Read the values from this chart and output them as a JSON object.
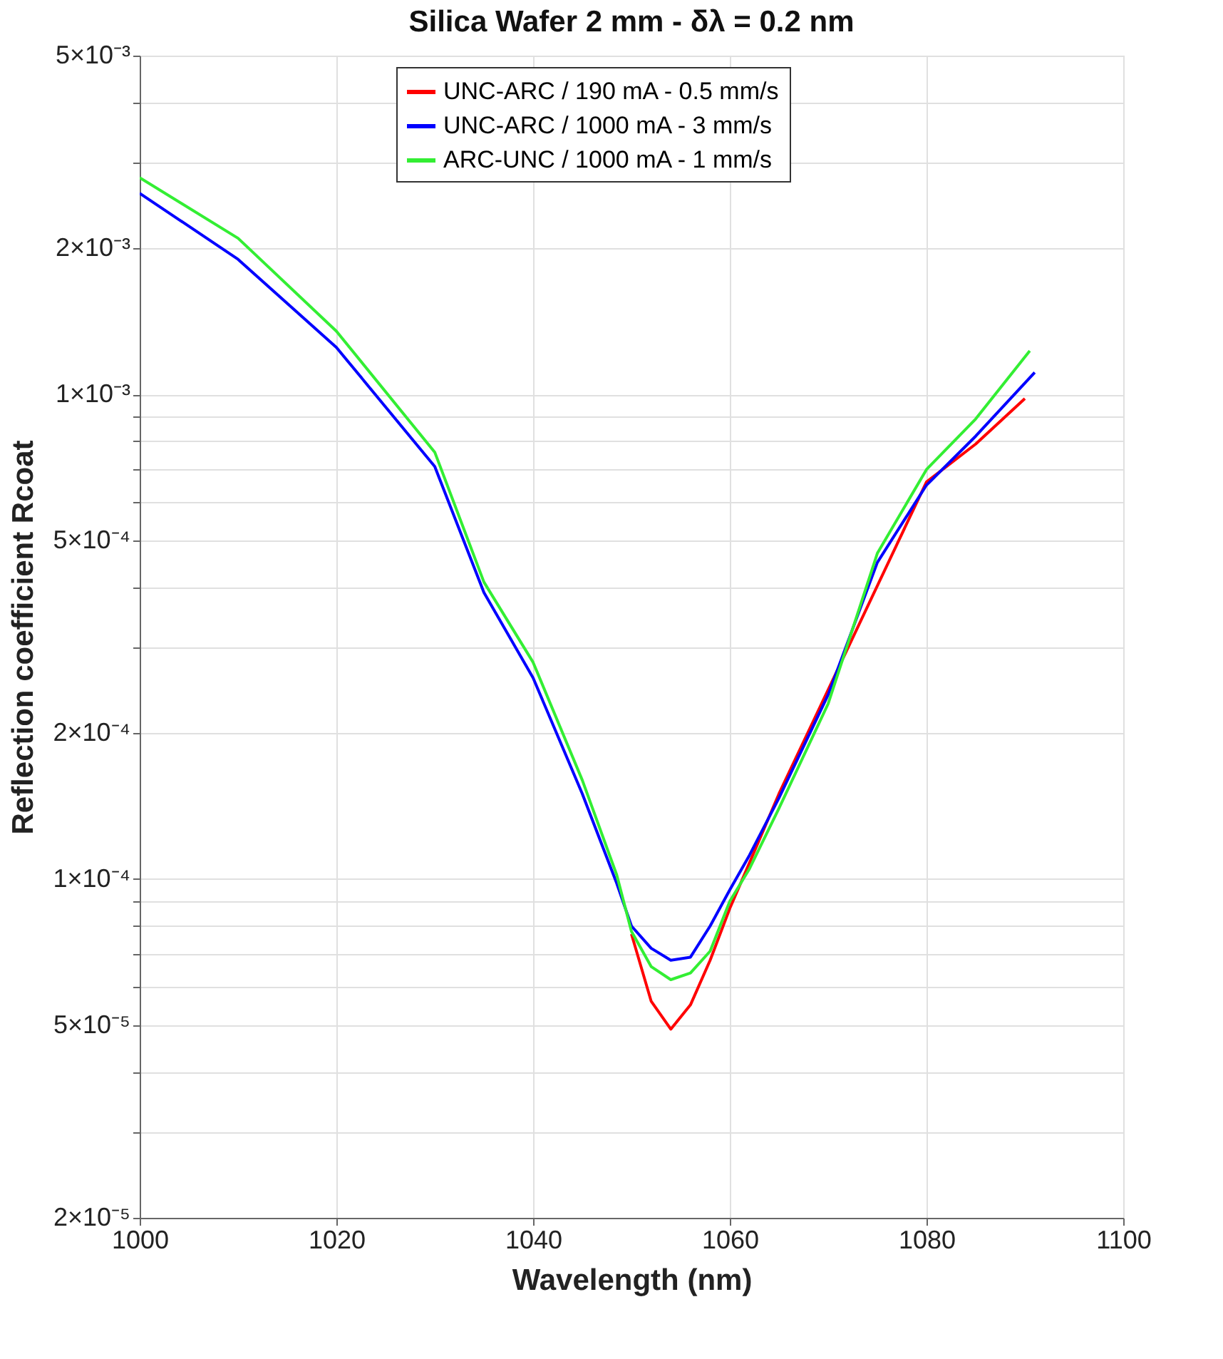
{
  "chart_data": {
    "type": "line",
    "title": "Silica Wafer 2 mm - δλ = 0.2 nm",
    "xlabel": "Wavelength (nm)",
    "ylabel": "Reflection coefficient Rcoat",
    "log": "y",
    "grid": true,
    "legend": "top",
    "line_style": "solid",
    "marker": "none",
    "xlim": [
      1000,
      1100
    ],
    "xticks": [
      1000,
      1020,
      1040,
      1060,
      1080,
      1100
    ],
    "ylim": [
      2e-05,
      0.005
    ],
    "yticks": [
      {
        "value": 2e-05,
        "label": "2×10⁻⁵"
      },
      {
        "value": 3e-05,
        "label": null
      },
      {
        "value": 4e-05,
        "label": null
      },
      {
        "value": 5e-05,
        "label": "5×10⁻⁵"
      },
      {
        "value": 6e-05,
        "label": null
      },
      {
        "value": 7e-05,
        "label": null
      },
      {
        "value": 8e-05,
        "label": null
      },
      {
        "value": 9e-05,
        "label": null
      },
      {
        "value": 0.0001,
        "label": "1×10⁻⁴"
      },
      {
        "value": 0.0002,
        "label": "2×10⁻⁴"
      },
      {
        "value": 0.0003,
        "label": null
      },
      {
        "value": 0.0004,
        "label": null
      },
      {
        "value": 0.0005,
        "label": "5×10⁻⁴"
      },
      {
        "value": 0.0006,
        "label": null
      },
      {
        "value": 0.0007,
        "label": null
      },
      {
        "value": 0.0008,
        "label": null
      },
      {
        "value": 0.0009,
        "label": null
      },
      {
        "value": 0.001,
        "label": "1×10⁻³"
      },
      {
        "value": 0.002,
        "label": "2×10⁻³"
      },
      {
        "value": 0.003,
        "label": null
      },
      {
        "value": 0.004,
        "label": null
      },
      {
        "value": 0.005,
        "label": "5×10⁻³"
      }
    ],
    "series": [
      {
        "name": "UNC-ARC / 190 mA - 0.5 mm/s",
        "color": "#ff0000",
        "x": [
          1050,
          1052,
          1054,
          1056,
          1058,
          1060,
          1062,
          1065,
          1080,
          1085,
          1090
        ],
        "values": [
          7.7e-05,
          5.6e-05,
          4.9e-05,
          5.5e-05,
          6.8e-05,
          8.7e-05,
          0.000108,
          0.00015,
          0.00066,
          0.00079,
          0.00098
        ]
      },
      {
        "name": "UNC-ARC / 1000 mA - 3 mm/s",
        "color": "#0000ff",
        "x": [
          1000,
          1010,
          1020,
          1030,
          1035,
          1040,
          1045,
          1048.5,
          1050,
          1052,
          1054,
          1056,
          1058,
          1060,
          1062,
          1065,
          1070,
          1075,
          1080,
          1085,
          1091
        ],
        "values": [
          0.0026,
          0.0019,
          0.00125,
          0.00071,
          0.00039,
          0.00026,
          0.00015,
          9.8e-05,
          8e-05,
          7.2e-05,
          6.8e-05,
          6.9e-05,
          8e-05,
          9.5e-05,
          0.000112,
          0.000147,
          0.00024,
          0.00045,
          0.00065,
          0.00082,
          0.00111
        ]
      },
      {
        "name": "ARC-UNC / 1000 mA - 1 mm/s",
        "color": "#33ee33",
        "x": [
          1000,
          1010,
          1020,
          1030,
          1035,
          1040,
          1045,
          1048.5,
          1050,
          1052,
          1054,
          1056,
          1058,
          1060,
          1062,
          1065,
          1070,
          1075,
          1080,
          1085,
          1090.5
        ],
        "values": [
          0.0028,
          0.0021,
          0.00135,
          0.00076,
          0.00041,
          0.00028,
          0.00016,
          0.000102,
          7.8e-05,
          6.6e-05,
          6.2e-05,
          6.4e-05,
          7.1e-05,
          9e-05,
          0.000105,
          0.00014,
          0.00023,
          0.00047,
          0.0007,
          0.00089,
          0.00123
        ]
      }
    ]
  }
}
